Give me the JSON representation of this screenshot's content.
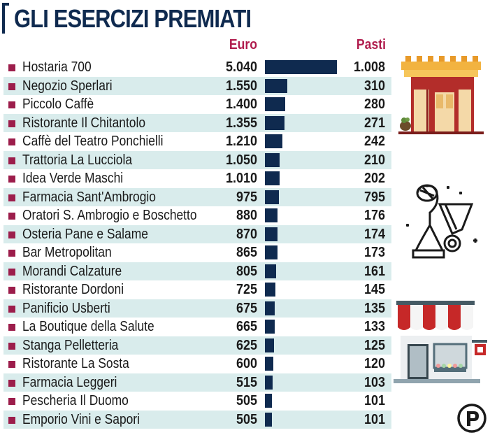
{
  "title": "GLI ESERCIZI PREMIATI",
  "columns": {
    "euro": "Euro",
    "pasti": "Pasti"
  },
  "colors": {
    "accent": "#b01c4d",
    "bar": "#0f2a4f",
    "stripe": "#d9ecec",
    "bullet": "#9c1d4b"
  },
  "icons": [
    "restaurant-building-icon",
    "trophy-medal-icon",
    "shop-awning-icon",
    "publisher-logo-icon"
  ],
  "chart_data": {
    "type": "bar",
    "orientation": "horizontal",
    "categories": [
      "Hostaria 700",
      "Negozio Sperlari",
      "Piccolo Caffè",
      "Ristorante Il Chitantolo",
      "Caffè del Teatro Ponchielli",
      "Trattoria La Lucciola",
      "Idea Verde Maschi",
      "Farmacia Sant'Ambrogio",
      "Oratori S. Ambrogio e Boschetto",
      "Osteria Pane e Salame",
      "Bar Metropolitan",
      "Morandi Calzature",
      "Ristorante Dordoni",
      "Panificio Usberti",
      "La Boutique della Salute",
      "Stanga Pelletteria",
      "Ristorante La Sosta",
      "Farmacia Leggeri",
      "Pescheria Il Duomo",
      "Emporio Vini e Sapori"
    ],
    "series": [
      {
        "name": "Euro",
        "values": [
          5040,
          1550,
          1400,
          1355,
          1210,
          1050,
          1010,
          975,
          880,
          870,
          865,
          805,
          725,
          675,
          665,
          625,
          600,
          515,
          505,
          505
        ],
        "labels": [
          "5.040",
          "1.550",
          "1.400",
          "1.355",
          "1.210",
          "1.050",
          "1.010",
          "975",
          "880",
          "870",
          "865",
          "805",
          "725",
          "675",
          "665",
          "625",
          "600",
          "515",
          "505",
          "505"
        ]
      },
      {
        "name": "Pasti",
        "values": [
          1008,
          310,
          280,
          271,
          242,
          210,
          202,
          795,
          176,
          174,
          173,
          161,
          145,
          135,
          133,
          125,
          120,
          103,
          101,
          101
        ],
        "labels": [
          "1.008",
          "310",
          "280",
          "271",
          "242",
          "210",
          "202",
          "795",
          "176",
          "174",
          "173",
          "161",
          "145",
          "135",
          "133",
          "125",
          "120",
          "103",
          "101",
          "101"
        ]
      }
    ],
    "bar_series": "Euro",
    "xlim": [
      0,
      5040
    ]
  }
}
